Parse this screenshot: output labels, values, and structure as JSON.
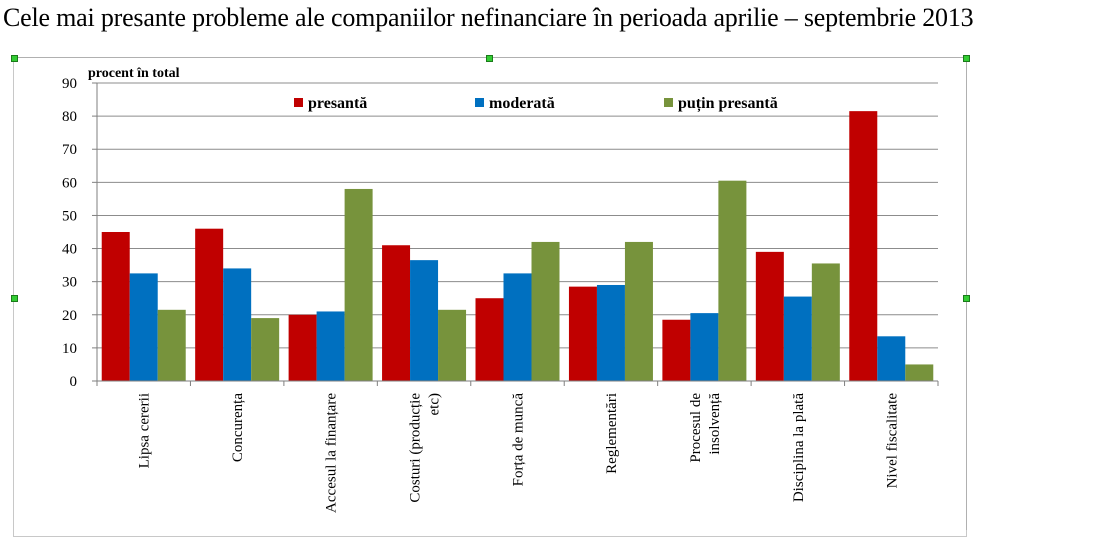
{
  "page": {
    "title": "Cele mai presante probleme ale companiilor nefinanciare în perioada aprilie – septembrie 2013"
  },
  "chart_data": {
    "type": "bar",
    "title": "",
    "ylabel": "procent  în total",
    "xlabel": "",
    "ylim": [
      0,
      90
    ],
    "yticks": [
      0,
      10,
      20,
      30,
      40,
      50,
      60,
      70,
      80,
      90
    ],
    "grid": true,
    "legend_position": "top",
    "categories": [
      [
        "Lipsa cererii"
      ],
      [
        "Concurența"
      ],
      [
        "Accesul la finanțare"
      ],
      [
        "Costuri (producție",
        "etc)"
      ],
      [
        "Forța de muncă"
      ],
      [
        "Reglementări"
      ],
      [
        "Procesul de",
        "insolvență"
      ],
      [
        "Disciplina la plată"
      ],
      [
        "Nivel fiscalitate"
      ]
    ],
    "series": [
      {
        "name": "presantă",
        "color": "#c00000",
        "values": [
          45,
          46,
          20,
          41,
          25,
          28.5,
          18.5,
          39,
          81.5
        ]
      },
      {
        "name": "moderată",
        "color": "#0070c0",
        "values": [
          32.5,
          34,
          21,
          36.5,
          32.5,
          29,
          20.5,
          25.5,
          13.5
        ]
      },
      {
        "name": "puțin presantă",
        "color": "#77933c",
        "values": [
          21.5,
          19,
          58,
          21.5,
          42,
          42,
          60.5,
          35.5,
          5
        ]
      }
    ]
  }
}
